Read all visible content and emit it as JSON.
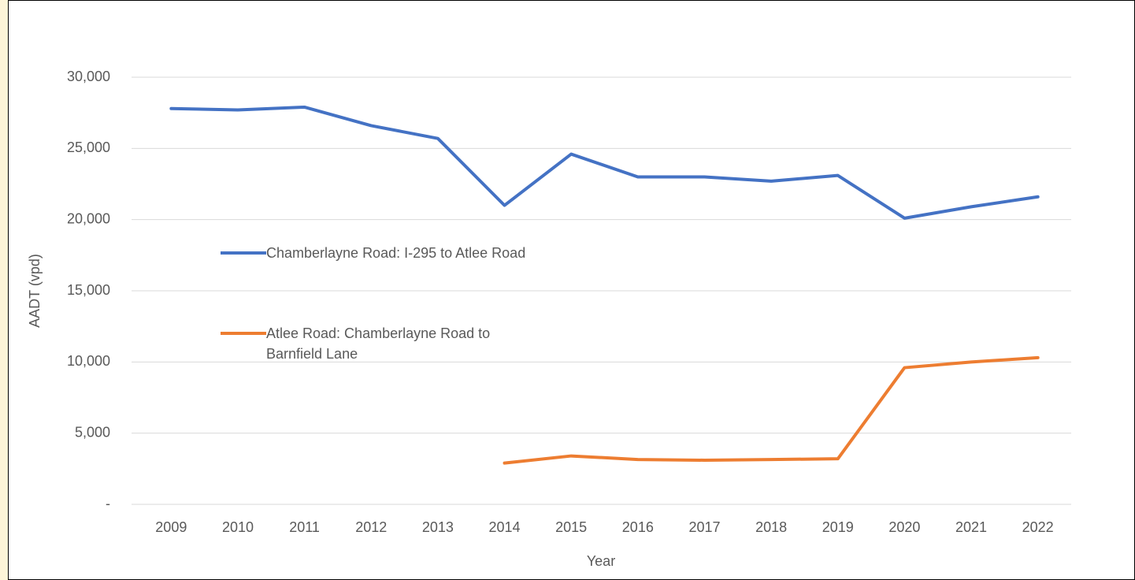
{
  "chart_data": {
    "type": "line",
    "x_label": "Year",
    "y_label": "AADT (vpd)",
    "categories": [
      2009,
      2010,
      2011,
      2012,
      2013,
      2014,
      2015,
      2016,
      2017,
      2018,
      2019,
      2020,
      2021,
      2022
    ],
    "series": [
      {
        "name": "Chamberlayne Road: I-295 to Atlee Road",
        "color": "#4472c4",
        "values": [
          27800,
          27700,
          27900,
          26600,
          25700,
          21000,
          24600,
          23000,
          23000,
          22700,
          23100,
          20100,
          20900,
          21600
        ]
      },
      {
        "name": "Atlee Road: Chamberlayne Road to Barnfield Lane",
        "color": "#ed7d31",
        "values": [
          null,
          null,
          null,
          null,
          null,
          2900,
          3400,
          3150,
          3100,
          3150,
          3200,
          9600,
          10000,
          10300
        ]
      }
    ],
    "ylim": [
      0,
      30000
    ],
    "yticks": [
      {
        "value": 0,
        "label": "-"
      },
      {
        "value": 5000,
        "label": "5,000"
      },
      {
        "value": 10000,
        "label": "10,000"
      },
      {
        "value": 15000,
        "label": "15,000"
      },
      {
        "value": 20000,
        "label": "20,000"
      },
      {
        "value": 25000,
        "label": "25,000"
      },
      {
        "value": 30000,
        "label": "30,000"
      }
    ],
    "grid": true,
    "legend": "left"
  }
}
